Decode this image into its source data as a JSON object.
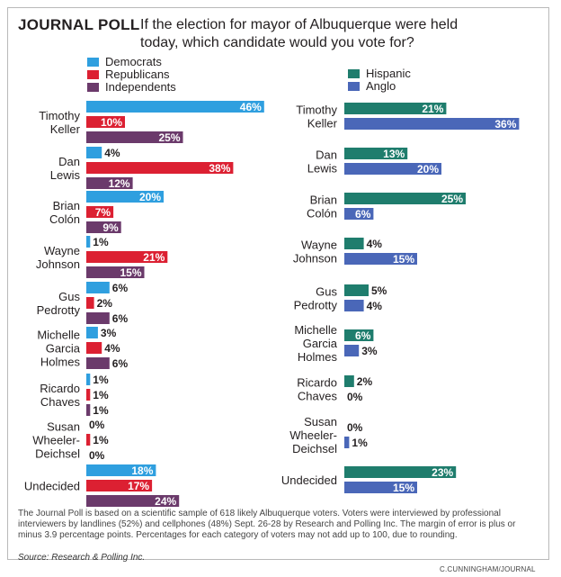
{
  "header": {
    "brand": "JOURNAL POLL",
    "question_line1": "If the election for mayor of Albuquerque were held",
    "question_line2": "today, which candidate would you vote for?"
  },
  "colors": {
    "Democrats": "#2f9fdf",
    "Republicans": "#dc2032",
    "Independents": "#6b3a6b",
    "Hispanic": "#1f7d6d",
    "Anglo": "#4a67b8"
  },
  "footer": {
    "note": "The Journal Poll is based on a scientific sample of 618 likely Albuquerque voters. Voters were interviewed by professional interviewers by landlines (52%) and cellphones (48%) Sept. 26-28 by Research and Polling Inc. The margin of error is plus or minus 3.9 percentage points. Percentages for each category of voters may not add up to 100, due to rounding.",
    "source": "Source: Research & Polling Inc.",
    "credit": "C.CUNNINGHAM/JOURNAL"
  },
  "chart_data": [
    {
      "type": "bar",
      "orientation": "horizontal",
      "legend_position": "top-left",
      "categories": [
        [
          "Timothy",
          "Keller"
        ],
        [
          "Dan",
          "Lewis"
        ],
        [
          "Brian",
          "Colón"
        ],
        [
          "Wayne",
          "Johnson"
        ],
        [
          "Gus",
          "Pedrotty"
        ],
        [
          "Michelle",
          "Garcia",
          "Holmes"
        ],
        [
          "Ricardo",
          "Chaves"
        ],
        [
          "Susan",
          "Wheeler-",
          "Deichsel"
        ],
        [
          "Undecided"
        ]
      ],
      "series": [
        {
          "name": "Democrats",
          "values": [
            46,
            4,
            20,
            1,
            6,
            3,
            1,
            0,
            18
          ]
        },
        {
          "name": "Republicans",
          "values": [
            10,
            38,
            7,
            21,
            2,
            4,
            1,
            1,
            17
          ]
        },
        {
          "name": "Independents",
          "values": [
            25,
            12,
            9,
            15,
            6,
            6,
            1,
            0,
            24
          ]
        }
      ],
      "value_suffix": "%"
    },
    {
      "type": "bar",
      "orientation": "horizontal",
      "legend_position": "top-left",
      "categories": [
        [
          "Timothy",
          "Keller"
        ],
        [
          "Dan",
          "Lewis"
        ],
        [
          "Brian",
          "Colón"
        ],
        [
          "Wayne",
          "Johnson"
        ],
        [
          "Gus",
          "Pedrotty"
        ],
        [
          "Michelle",
          "Garcia",
          "Holmes"
        ],
        [
          "Ricardo",
          "Chaves"
        ],
        [
          "Susan",
          "Wheeler-",
          "Deichsel"
        ],
        [
          "Undecided"
        ]
      ],
      "series": [
        {
          "name": "Hispanic",
          "values": [
            21,
            13,
            25,
            4,
            5,
            6,
            2,
            0,
            23
          ]
        },
        {
          "name": "Anglo",
          "values": [
            36,
            20,
            6,
            15,
            4,
            3,
            0,
            1,
            15
          ]
        }
      ],
      "value_suffix": "%"
    }
  ]
}
